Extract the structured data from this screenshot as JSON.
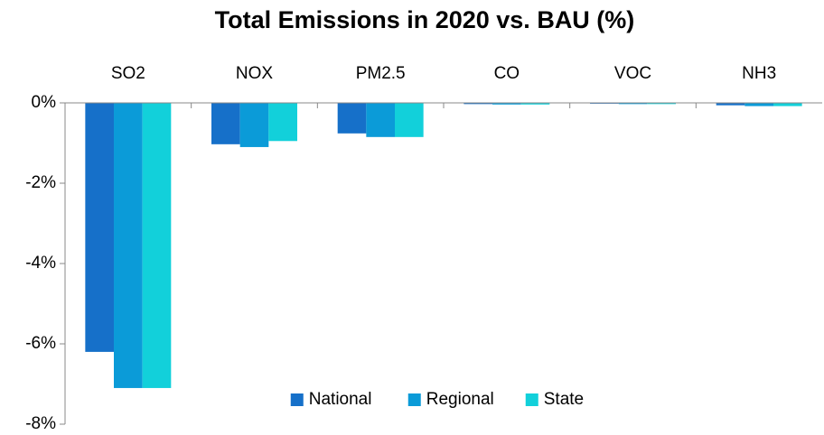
{
  "chart_data": {
    "type": "bar",
    "title": "Total Emissions in 2020 vs. BAU (%)",
    "categories": [
      "SO2",
      "NOX",
      "PM2.5",
      "CO",
      "VOC",
      "NH3"
    ],
    "series": [
      {
        "name": "National",
        "color": "#1670c9",
        "values": [
          -6.2,
          -1.03,
          -0.76,
          -0.03,
          -0.02,
          -0.06
        ]
      },
      {
        "name": "Regional",
        "color": "#0b9bd8",
        "values": [
          -7.1,
          -1.1,
          -0.85,
          -0.04,
          -0.03,
          -0.08
        ]
      },
      {
        "name": "State",
        "color": "#12d0da",
        "values": [
          -7.1,
          -0.95,
          -0.85,
          -0.04,
          -0.03,
          -0.08
        ]
      }
    ],
    "ylim": [
      -8,
      0
    ],
    "yticks": [
      {
        "value": 0,
        "label": "0%"
      },
      {
        "value": -2,
        "label": "-2%"
      },
      {
        "value": -4,
        "label": "-4%"
      },
      {
        "value": -6,
        "label": "-6%"
      },
      {
        "value": -8,
        "label": "-8%"
      }
    ],
    "grid": false,
    "legend": "lower center"
  }
}
